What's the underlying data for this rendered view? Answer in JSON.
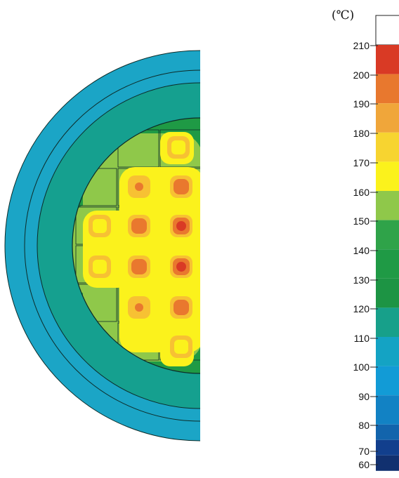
{
  "legend": {
    "unit": "(℃)",
    "ticks": [
      210,
      200,
      190,
      180,
      170,
      160,
      150,
      140,
      130,
      120,
      110,
      100,
      90,
      80,
      70,
      60
    ],
    "band_colors": [
      "#ffffff",
      "#d93a25",
      "#e8782e",
      "#f0a63a",
      "#f7d430",
      "#fbf21c",
      "#8fc84a",
      "#2fa349",
      "#1f9a45",
      "#1d9444",
      "#17a08a",
      "#14a3c4",
      "#129bd6",
      "#1282c4",
      "#1264ac",
      "#123f8d",
      "#11306f"
    ]
  },
  "cross_section": {
    "colors": {
      "outer_ring": "#1ba5c6",
      "middle_ring": "#15a08f",
      "core_green": "#1f9a45",
      "light_green": "#8fc84a",
      "yellow": "#fbf21c",
      "light_orange": "#f7c133",
      "orange": "#e9782e",
      "red": "#d93a25",
      "outline": "#0d2b28"
    }
  }
}
